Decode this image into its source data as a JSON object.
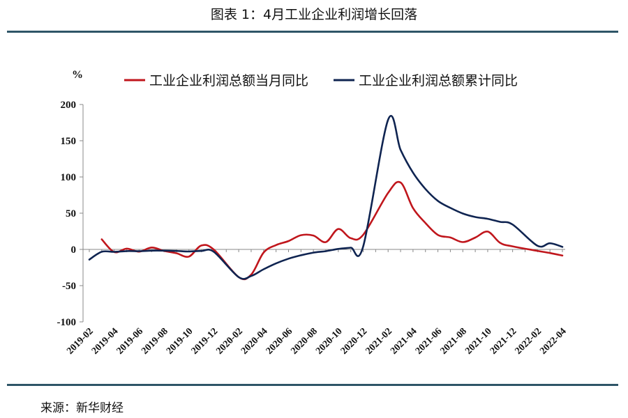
{
  "header": {
    "title": "图表 1：4月工业企业利润增长回落"
  },
  "footer": {
    "source": "来源：新华财经"
  },
  "chart_data": {
    "type": "line",
    "title": "图表 1：4月工业企业利润增长回落",
    "ylabel": "%",
    "xlabel": "",
    "ylim": [
      -100,
      200
    ],
    "yticks": [
      -100,
      -50,
      0,
      50,
      100,
      150,
      200
    ],
    "grid": false,
    "legend": "top",
    "x": [
      "2019-02",
      "2019-03",
      "2019-04",
      "2019-05",
      "2019-06",
      "2019-07",
      "2019-08",
      "2019-09",
      "2019-10",
      "2019-11",
      "2019-12",
      "2020-01",
      "2020-02",
      "2020-03",
      "2020-04",
      "2020-05",
      "2020-06",
      "2020-07",
      "2020-08",
      "2020-09",
      "2020-10",
      "2020-11",
      "2020-12",
      "2021-01",
      "2021-02",
      "2021-03",
      "2021-04",
      "2021-05",
      "2021-06",
      "2021-07",
      "2021-08",
      "2021-09",
      "2021-10",
      "2021-11",
      "2021-12",
      "2022-01",
      "2022-02",
      "2022-03",
      "2022-04"
    ],
    "xticklabels": [
      "2019-02",
      "2019-04",
      "2019-06",
      "2019-08",
      "2019-10",
      "2019-12",
      "2020-02",
      "2020-04",
      "2020-06",
      "2020-08",
      "2020-10",
      "2020-12",
      "2021-02",
      "2021-04",
      "2021-06",
      "2021-08",
      "2021-10",
      "2021-12",
      "2022-02",
      "2022-04"
    ],
    "series": [
      {
        "name": "工业企业利润总额当月同比",
        "color": "#c0161c",
        "values": [
          null,
          13.9,
          -3.7,
          1.1,
          -3.1,
          2.6,
          -2.0,
          -5.3,
          -9.9,
          5.4,
          -0.3,
          null,
          -38.3,
          -34.9,
          -4.3,
          6.0,
          11.5,
          19.6,
          19.1,
          10.1,
          28.2,
          15.5,
          20.1,
          null,
          78.0,
          92.3,
          57.0,
          36.4,
          20.0,
          16.4,
          10.1,
          16.3,
          24.6,
          9.0,
          4.2,
          null,
          -2.0,
          -5.0,
          -8.5
        ]
      },
      {
        "name": "工业企业利润总额累计同比",
        "color": "#0f2451",
        "values": [
          -14.0,
          -3.3,
          -3.4,
          -2.3,
          -2.4,
          -1.7,
          -1.7,
          -2.1,
          -2.9,
          -2.1,
          -3.3,
          null,
          -38.3,
          -36.7,
          -27.4,
          -19.3,
          -12.8,
          -8.1,
          -4.4,
          -2.4,
          0.7,
          2.4,
          4.1,
          null,
          178.9,
          137.3,
          106.0,
          83.4,
          66.9,
          57.3,
          49.5,
          44.7,
          42.2,
          38.0,
          34.3,
          null,
          5.0,
          8.5,
          3.5
        ]
      }
    ]
  }
}
